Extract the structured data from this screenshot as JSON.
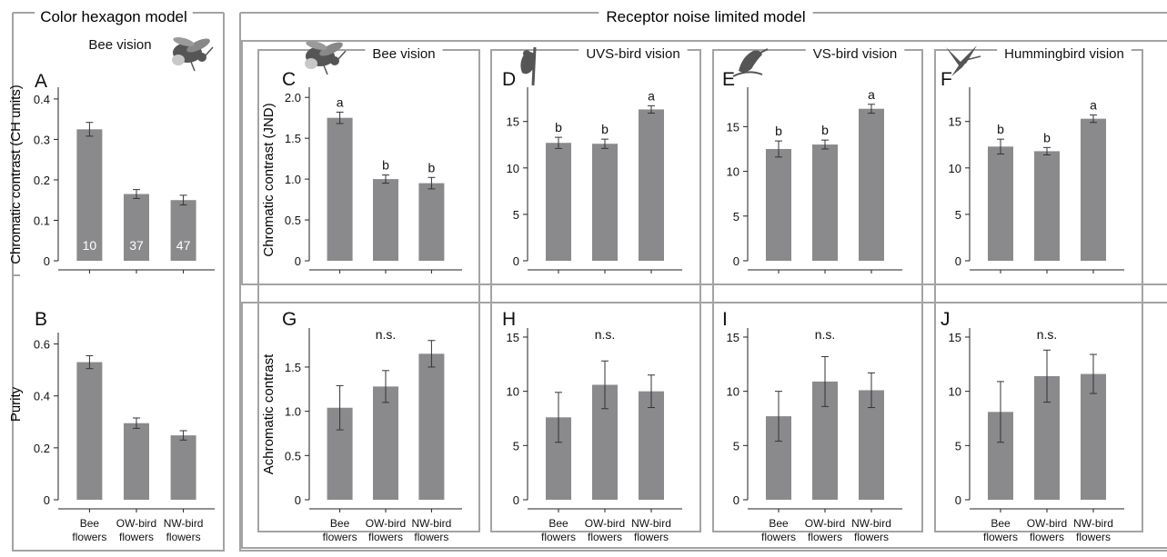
{
  "sections": {
    "hexagon": "Color hexagon model",
    "rnl": "Receptor noise limited model"
  },
  "y_labels": {
    "A": "Chromatic contrast (CH units)",
    "B": "Purity",
    "C": "Chromatic contrast (JND)",
    "G": "Achromatic contrast"
  },
  "categories": [
    [
      "Bee",
      "flowers"
    ],
    [
      "OW-bird",
      "flowers"
    ],
    [
      "NW-bird",
      "flowers"
    ]
  ],
  "sample_sizes": [
    "10",
    "37",
    "47"
  ],
  "colors": {
    "bar": "#8a8a8c",
    "frame": "#a3a3a3",
    "axis": "#222222",
    "text": "#111111"
  },
  "icons": {
    "A": "bumblebee-icon",
    "C": "bumblebee-icon",
    "D": "uvs-bird-icon",
    "E": "vs-bird-icon",
    "F": "hummingbird-icon"
  },
  "chart_data": [
    {
      "id": "A",
      "letter": "A",
      "type": "bar",
      "title": "Bee vision",
      "categories": [
        "Bee flowers",
        "OW-bird flowers",
        "NW-bird flowers"
      ],
      "values": [
        0.325,
        0.165,
        0.15
      ],
      "errors": [
        0.017,
        0.011,
        0.012
      ],
      "ylim": [
        0,
        0.42
      ],
      "yticks": [
        0,
        0.1,
        0.2,
        0.3,
        0.4
      ],
      "yticklabels": [
        "0",
        "0.1",
        "0.2",
        "0.3",
        "0.4"
      ],
      "letters": []
    },
    {
      "id": "B",
      "letter": "B",
      "type": "bar",
      "title": "",
      "categories": [
        "Bee flowers",
        "OW-bird flowers",
        "NW-bird flowers"
      ],
      "values": [
        0.53,
        0.295,
        0.248
      ],
      "errors": [
        0.025,
        0.02,
        0.018
      ],
      "ylim": [
        0,
        0.63
      ],
      "yticks": [
        0,
        0.2,
        0.4,
        0.6
      ],
      "yticklabels": [
        "0",
        "0.2",
        "0.4",
        "0.6"
      ],
      "letters": []
    },
    {
      "id": "C",
      "letter": "C",
      "type": "bar",
      "title": "Bee vision",
      "categories": [
        "Bee flowers",
        "OW-bird flowers",
        "NW-bird flowers"
      ],
      "values": [
        1.75,
        1.0,
        0.95
      ],
      "errors": [
        0.07,
        0.05,
        0.07
      ],
      "ylim": [
        0,
        2.08
      ],
      "yticks": [
        0,
        0.5,
        1.0,
        1.5,
        2.0
      ],
      "yticklabels": [
        "0",
        "0.5",
        "1.0",
        "1.5",
        "2.0"
      ],
      "letters": [
        "a",
        "b",
        "b"
      ]
    },
    {
      "id": "D",
      "letter": "D",
      "type": "bar",
      "title": "UVS-bird vision",
      "categories": [
        "Bee flowers",
        "OW-bird flowers",
        "NW-bird flowers"
      ],
      "values": [
        12.7,
        12.6,
        16.3
      ],
      "errors": [
        0.6,
        0.5,
        0.4
      ],
      "ylim": [
        0,
        18.3
      ],
      "yticks": [
        0,
        5,
        10,
        15
      ],
      "yticklabels": [
        "0",
        "5",
        "10",
        "15"
      ],
      "letters": [
        "b",
        "b",
        "a"
      ]
    },
    {
      "id": "E",
      "letter": "E",
      "type": "bar",
      "title": "VS-bird vision",
      "categories": [
        "Bee flowers",
        "OW-bird flowers",
        "NW-bird flowers"
      ],
      "values": [
        12.5,
        13.0,
        17.0
      ],
      "errors": [
        0.9,
        0.5,
        0.5
      ],
      "ylim": [
        0,
        19.0
      ],
      "yticks": [
        0,
        5,
        10,
        15
      ],
      "yticklabels": [
        "0",
        "5",
        "10",
        "15"
      ],
      "letters": [
        "b",
        "b",
        "a"
      ]
    },
    {
      "id": "F",
      "letter": "F",
      "type": "bar",
      "title": "Hummingbird vision",
      "categories": [
        "Bee flowers",
        "OW-bird flowers",
        "NW-bird flowers"
      ],
      "values": [
        12.3,
        11.8,
        15.3
      ],
      "errors": [
        0.8,
        0.4,
        0.4
      ],
      "ylim": [
        0,
        18.3
      ],
      "yticks": [
        0,
        5,
        10,
        15
      ],
      "yticklabels": [
        "0",
        "5",
        "10",
        "15"
      ],
      "letters": [
        "b",
        "b",
        "a"
      ]
    },
    {
      "id": "G",
      "letter": "G",
      "type": "bar",
      "title": "",
      "categories": [
        "Bee flowers",
        "OW-bird flowers",
        "NW-bird flowers"
      ],
      "values": [
        1.04,
        1.28,
        1.65
      ],
      "errors": [
        0.25,
        0.18,
        0.15
      ],
      "ylim": [
        0,
        1.9
      ],
      "yticks": [
        0,
        0.5,
        1.0,
        1.5
      ],
      "yticklabels": [
        "0",
        "0.5",
        "1.0",
        "1.5"
      ],
      "letters": [],
      "annotation": "n.s."
    },
    {
      "id": "H",
      "letter": "H",
      "type": "bar",
      "title": "",
      "categories": [
        "Bee flowers",
        "OW-bird flowers",
        "NW-bird flowers"
      ],
      "values": [
        7.6,
        10.6,
        10.0
      ],
      "errors": [
        2.3,
        2.2,
        1.5
      ],
      "ylim": [
        0,
        15.5
      ],
      "yticks": [
        0,
        5,
        10,
        15
      ],
      "yticklabels": [
        "0",
        "5",
        "10",
        "15"
      ],
      "letters": [],
      "annotation": "n.s."
    },
    {
      "id": "I",
      "letter": "I",
      "type": "bar",
      "title": "",
      "categories": [
        "Bee flowers",
        "OW-bird flowers",
        "NW-bird flowers"
      ],
      "values": [
        7.7,
        10.9,
        10.1
      ],
      "errors": [
        2.3,
        2.3,
        1.6
      ],
      "ylim": [
        0,
        15.5
      ],
      "yticks": [
        0,
        5,
        10,
        15
      ],
      "yticklabels": [
        "0",
        "5",
        "10",
        "15"
      ],
      "letters": [],
      "annotation": "n.s."
    },
    {
      "id": "J",
      "letter": "J",
      "type": "bar",
      "title": "",
      "categories": [
        "Bee flowers",
        "OW-bird flowers",
        "NW-bird flowers"
      ],
      "values": [
        8.1,
        11.4,
        11.6
      ],
      "errors": [
        2.8,
        2.4,
        1.8
      ],
      "ylim": [
        0,
        15.5
      ],
      "yticks": [
        0,
        5,
        10,
        15
      ],
      "yticklabels": [
        "0",
        "5",
        "10",
        "15"
      ],
      "letters": [],
      "annotation": "n.s."
    }
  ]
}
